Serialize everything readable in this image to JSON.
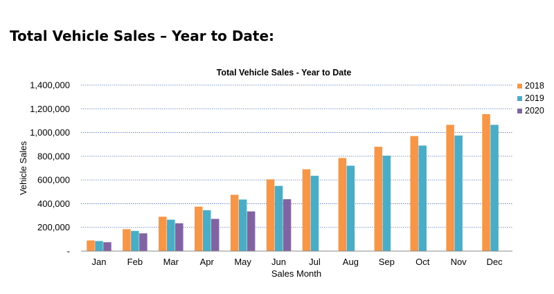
{
  "page": {
    "heading": "Total Vehicle Sales – Year to Date:"
  },
  "chart_data": {
    "type": "bar",
    "title": "Total Vehicle Sales - Year to Date",
    "xlabel": "Sales Month",
    "ylabel": "Vehicle Sales",
    "ylim": [
      0,
      1400000
    ],
    "yticks": [
      0,
      200000,
      400000,
      600000,
      800000,
      1000000,
      1200000,
      1400000
    ],
    "ytick_labels": [
      "-",
      "200,000",
      "400,000",
      "600,000",
      "800,000",
      "1,000,000",
      "1,200,000",
      "1,400,000"
    ],
    "grid": "horizontal dotted",
    "legend_position": "right",
    "categories": [
      "Jan",
      "Feb",
      "Mar",
      "Apr",
      "May",
      "Jun",
      "Jul",
      "Aug",
      "Sep",
      "Oct",
      "Nov",
      "Dec"
    ],
    "series": [
      {
        "name": "2018",
        "color": "#F79646",
        "values": [
          90000,
          185000,
          290000,
          375000,
          475000,
          605000,
          690000,
          785000,
          880000,
          970000,
          1065000,
          1155000
        ]
      },
      {
        "name": "2019",
        "color": "#4BACC6",
        "values": [
          85000,
          170000,
          265000,
          345000,
          435000,
          550000,
          635000,
          720000,
          805000,
          890000,
          975000,
          1065000
        ]
      },
      {
        "name": "2020",
        "color": "#8064A2",
        "values": [
          75000,
          150000,
          235000,
          272000,
          335000,
          438000,
          null,
          null,
          null,
          null,
          null,
          null
        ]
      }
    ]
  }
}
